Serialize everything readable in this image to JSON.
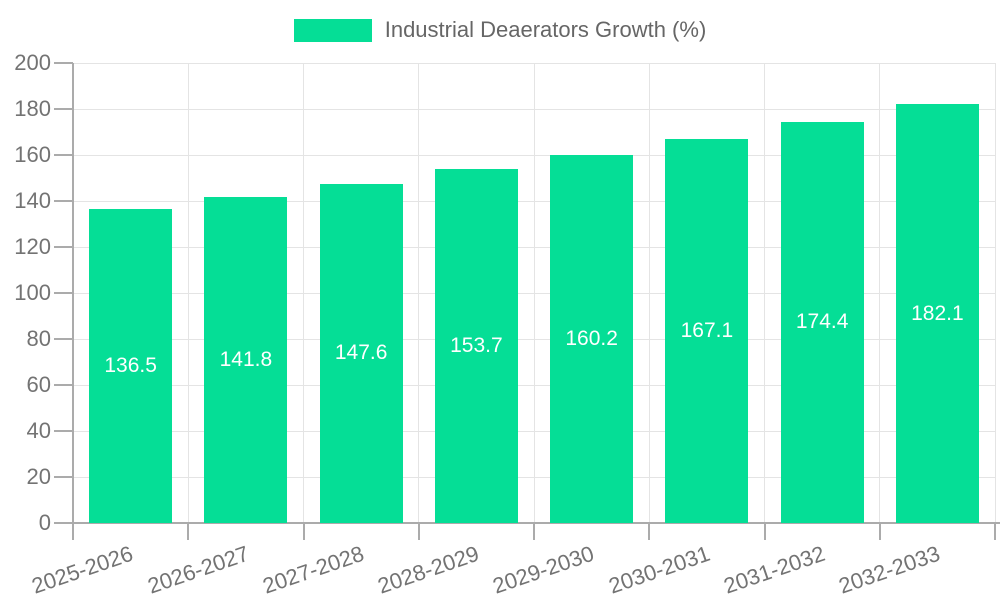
{
  "chart_data": {
    "type": "bar",
    "title": "Industrial Deaerators Growth (%)",
    "legend": [
      "Industrial Deaerators Growth (%)"
    ],
    "legend_position": "top-center",
    "categories": [
      "2025-2026",
      "2026-2027",
      "2027-2028",
      "2028-2029",
      "2029-2030",
      "2030-2031",
      "2031-2032",
      "2032-2033"
    ],
    "values": [
      136.5,
      141.8,
      147.6,
      153.7,
      160.2,
      167.1,
      174.4,
      182.1
    ],
    "value_labels": [
      "136.5",
      "141.8",
      "147.6",
      "153.7",
      "160.2",
      "167.1",
      "174.4",
      "182.1"
    ],
    "xlabel": "",
    "ylabel": "",
    "ylim": [
      0,
      200
    ],
    "yticks": [
      0,
      20,
      40,
      60,
      80,
      100,
      120,
      140,
      160,
      180,
      200
    ],
    "grid": "on"
  },
  "style": {
    "bar_color": "#05DE96",
    "value_label_color": "#FFFFFF",
    "grid_color": "#E4E4E4",
    "axis_line_color": "#ABABAB",
    "axis_text_color": "#737373",
    "legend_text_color": "#666666",
    "background_color": "#FFFFFF",
    "x_label_rotation_deg": -19
  }
}
